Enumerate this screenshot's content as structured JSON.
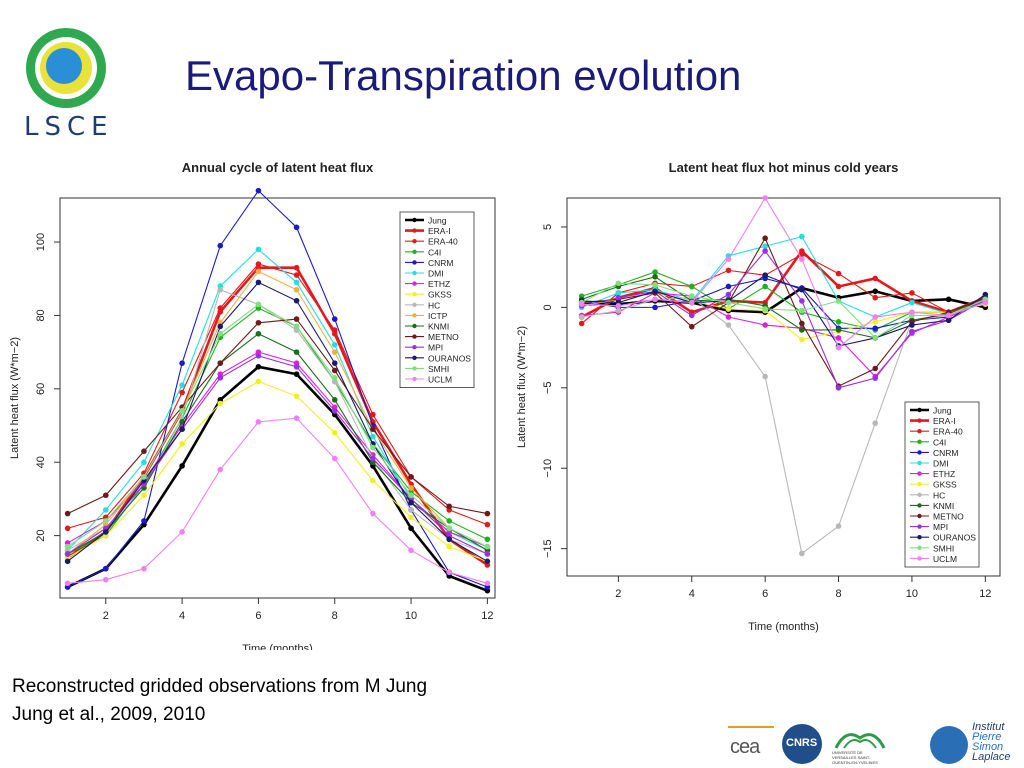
{
  "slide": {
    "title": "Evapo-Transpiration evolution",
    "logo_text": "LSCE",
    "footer_line1": "Reconstructed gridded observations from M Jung",
    "footer_line2": "Jung et al., 2009, 2010",
    "partners": {
      "cea": "cea",
      "cnrs": "CNRS",
      "uvsq": "UNIVERSITÉ DE VERSAILLES SAINT-QUENTIN-EN-YVELINES",
      "ipsl_1": "Institut",
      "ipsl_2": "Pierre",
      "ipsl_3": "Simon",
      "ipsl_4": "Laplace"
    }
  },
  "colors": {
    "Jung": "#000000",
    "ERA-I": "#e31a1c",
    "ERA-40": "#e31a1c",
    "C4I": "#22b022",
    "CNRM": "#1a1acc",
    "DMI": "#22e0e0",
    "ETHZ": "#e020e0",
    "GKSS": "#f0f020",
    "HC": "#b8b8b8",
    "ICTP": "#f0b040",
    "KNMI": "#1a6e1a",
    "METNO": "#6e1a1a",
    "MPI": "#9a30e0",
    "OURANOS": "#1a1a6e",
    "SMHI": "#80e080",
    "UCLM": "#f080f0"
  },
  "chart_data": [
    {
      "type": "line",
      "title": "Annual cycle of latent heat flux",
      "xlabel": "Time (months)",
      "ylabel": "Latent heat flux (W*m−2)",
      "xlim": [
        0.8,
        12.2
      ],
      "ylim": [
        3,
        112
      ],
      "xticks": [
        2,
        4,
        6,
        8,
        10,
        12
      ],
      "yticks": [
        20,
        40,
        60,
        80,
        100
      ],
      "legend": "top-right",
      "x": [
        1,
        2,
        3,
        4,
        5,
        6,
        7,
        8,
        9,
        10,
        11,
        12
      ],
      "series": [
        {
          "name": "Jung",
          "values": [
            6,
            11,
            23,
            39,
            57,
            66,
            64,
            53,
            39,
            22,
            9,
            5
          ]
        },
        {
          "name": "ERA-I",
          "values": [
            14,
            21,
            36,
            54,
            81,
            93,
            93,
            75,
            51,
            34,
            19,
            12
          ]
        },
        {
          "name": "ERA-40",
          "values": [
            22,
            25,
            37,
            59,
            82,
            94,
            91,
            76,
            53,
            36,
            27,
            23
          ]
        },
        {
          "name": "C4I",
          "values": [
            15,
            20,
            34,
            52,
            74,
            82,
            77,
            62,
            45,
            32,
            24,
            19
          ]
        },
        {
          "name": "CNRM",
          "values": [
            6,
            11,
            24,
            67,
            99,
            114,
            104,
            79,
            50,
            27,
            10,
            6
          ]
        },
        {
          "name": "DMI",
          "values": [
            16,
            27,
            40,
            61,
            88,
            98,
            89,
            72,
            47,
            30,
            21,
            16
          ]
        },
        {
          "name": "ETHZ",
          "values": [
            18,
            24,
            35,
            50,
            64,
            70,
            67,
            55,
            42,
            30,
            21,
            17
          ]
        },
        {
          "name": "GKSS",
          "values": [
            14,
            20,
            31,
            45,
            56,
            62,
            58,
            48,
            35,
            25,
            17,
            13
          ]
        },
        {
          "name": "HC",
          "values": [
            16,
            22,
            33,
            52,
            87,
            83,
            76,
            62,
            41,
            27,
            19,
            15
          ]
        },
        {
          "name": "ICTP",
          "values": [
            15,
            23,
            36,
            54,
            78,
            92,
            87,
            70,
            49,
            33,
            22,
            16
          ]
        },
        {
          "name": "KNMI",
          "values": [
            15,
            21,
            33,
            51,
            67,
            75,
            70,
            57,
            40,
            29,
            22,
            16
          ]
        },
        {
          "name": "METNO",
          "values": [
            26,
            31,
            43,
            55,
            67,
            78,
            79,
            65,
            49,
            36,
            28,
            26
          ]
        },
        {
          "name": "MPI",
          "values": [
            15,
            22,
            34,
            49,
            63,
            69,
            66,
            54,
            41,
            30,
            20,
            15
          ]
        },
        {
          "name": "OURANOS",
          "values": [
            13,
            21,
            35,
            49,
            77,
            89,
            84,
            67,
            45,
            29,
            19,
            13
          ]
        },
        {
          "name": "SMHI",
          "values": [
            17,
            24,
            36,
            54,
            75,
            83,
            77,
            63,
            44,
            31,
            22,
            17
          ]
        },
        {
          "name": "UCLM",
          "values": [
            7,
            8,
            11,
            21,
            38,
            51,
            52,
            41,
            26,
            16,
            10,
            7
          ]
        }
      ]
    },
    {
      "type": "line",
      "title": "Latent heat flux hot minus cold years",
      "xlabel": "Time (months)",
      "ylabel": "Latent heat flux (W*m−2)",
      "xlim": [
        0.6,
        12.4
      ],
      "ylim": [
        -16.7,
        6.8
      ],
      "xticks": [
        2,
        4,
        6,
        8,
        10,
        12
      ],
      "yticks": [
        5,
        0,
        -5,
        -10,
        -15
      ],
      "legend": "bottom-right",
      "x": [
        1,
        2,
        3,
        4,
        5,
        6,
        7,
        8,
        9,
        10,
        11,
        12
      ],
      "series": [
        {
          "name": "Jung",
          "values": [
            0.2,
            0.2,
            0.4,
            0.3,
            -0.2,
            -0.3,
            1.2,
            0.6,
            1.0,
            0.4,
            0.5,
            0.0
          ]
        },
        {
          "name": "ERA-I",
          "values": [
            -0.6,
            0.6,
            1.2,
            -0.3,
            0.4,
            0.3,
            3.5,
            1.3,
            1.8,
            0.4,
            -0.3,
            0.6
          ]
        },
        {
          "name": "ERA-40",
          "values": [
            -1.0,
            0.9,
            1.5,
            1.3,
            2.3,
            2.0,
            3.3,
            2.1,
            0.6,
            0.9,
            -0.3,
            0.4
          ]
        },
        {
          "name": "C4I",
          "values": [
            0.7,
            1.4,
            2.2,
            1.3,
            -0.1,
            1.3,
            -0.3,
            -0.9,
            -1.4,
            -0.3,
            -0.3,
            0.4
          ]
        },
        {
          "name": "CNRM",
          "values": [
            0.4,
            0.0,
            0.0,
            0.4,
            1.3,
            1.8,
            1.2,
            -1.3,
            -1.3,
            -0.8,
            -0.6,
            0.5
          ]
        },
        {
          "name": "DMI",
          "values": [
            0.0,
            0.9,
            1.1,
            0.4,
            3.2,
            3.8,
            4.4,
            0.4,
            -0.6,
            0.3,
            -0.4,
            0.6
          ]
        },
        {
          "name": "ETHZ",
          "values": [
            -0.5,
            -0.3,
            0.9,
            0.7,
            -0.6,
            -1.1,
            -1.3,
            -1.9,
            -4.3,
            -1.6,
            -0.6,
            0.4
          ]
        },
        {
          "name": "GKSS",
          "values": [
            0.1,
            0.5,
            0.9,
            0.4,
            -0.1,
            -0.2,
            -2.0,
            -1.5,
            -0.9,
            -0.3,
            -0.3,
            0.2
          ]
        },
        {
          "name": "HC",
          "values": [
            -0.6,
            -0.2,
            0.5,
            0.6,
            -1.1,
            -4.3,
            -15.3,
            -13.6,
            -7.2,
            -0.8,
            -0.5,
            0.3
          ]
        },
        {
          "name": "KNMI",
          "values": [
            0.5,
            1.3,
            1.9,
            0.4,
            0.5,
            0.1,
            -1.4,
            -1.4,
            -1.9,
            -0.8,
            -0.4,
            0.6
          ]
        },
        {
          "name": "METNO",
          "values": [
            0.3,
            0.5,
            0.9,
            -1.2,
            0.3,
            4.3,
            -1.0,
            -4.9,
            -3.8,
            -0.9,
            -0.3,
            0.6
          ]
        },
        {
          "name": "MPI",
          "values": [
            0.1,
            0.6,
            1.0,
            -0.5,
            0.8,
            3.5,
            0.4,
            -5.0,
            -4.4,
            -1.5,
            -0.8,
            0.5
          ]
        },
        {
          "name": "OURANOS",
          "values": [
            0.4,
            0.3,
            1.0,
            0.3,
            0.4,
            2.0,
            1.1,
            -2.4,
            -1.9,
            -1.1,
            -0.8,
            0.8
          ]
        },
        {
          "name": "SMHI",
          "values": [
            0.3,
            1.5,
            1.4,
            0.7,
            0.3,
            -0.1,
            -0.2,
            0.4,
            -1.9,
            -0.5,
            -0.5,
            0.5
          ]
        },
        {
          "name": "UCLM",
          "values": [
            0.2,
            0.1,
            0.5,
            0.3,
            3.0,
            6.8,
            3.0,
            -2.5,
            -0.6,
            -0.3,
            -0.5,
            0.3
          ]
        }
      ]
    }
  ]
}
